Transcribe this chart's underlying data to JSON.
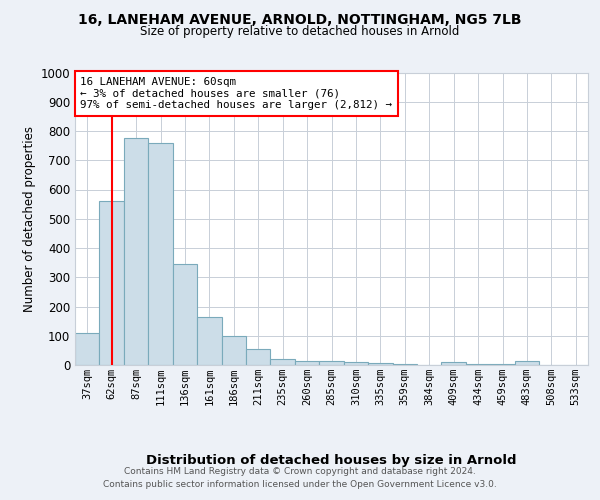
{
  "title1": "16, LANEHAM AVENUE, ARNOLD, NOTTINGHAM, NG5 7LB",
  "title2": "Size of property relative to detached houses in Arnold",
  "xlabel": "Distribution of detached houses by size in Arnold",
  "ylabel": "Number of detached properties",
  "categories": [
    "37sqm",
    "62sqm",
    "87sqm",
    "111sqm",
    "136sqm",
    "161sqm",
    "186sqm",
    "211sqm",
    "235sqm",
    "260sqm",
    "285sqm",
    "310sqm",
    "335sqm",
    "359sqm",
    "384sqm",
    "409sqm",
    "434sqm",
    "459sqm",
    "483sqm",
    "508sqm",
    "533sqm"
  ],
  "values": [
    110,
    560,
    775,
    760,
    345,
    165,
    100,
    55,
    20,
    15,
    12,
    10,
    8,
    5,
    0,
    10,
    5,
    3,
    12,
    0,
    0
  ],
  "bar_color": "#ccdde8",
  "bar_edge_color": "#7aaabb",
  "red_line_index": 1,
  "annotation_line1": "16 LANEHAM AVENUE: 60sqm",
  "annotation_line2": "← 3% of detached houses are smaller (76)",
  "annotation_line3": "97% of semi-detached houses are larger (2,812) →",
  "ylim": [
    0,
    1000
  ],
  "yticks": [
    0,
    100,
    200,
    300,
    400,
    500,
    600,
    700,
    800,
    900,
    1000
  ],
  "footnote1": "Contains HM Land Registry data © Crown copyright and database right 2024.",
  "footnote2": "Contains public sector information licensed under the Open Government Licence v3.0.",
  "bg_color": "#edf1f7",
  "plot_bg_color": "#ffffff",
  "grid_color": "#c8cfd8"
}
